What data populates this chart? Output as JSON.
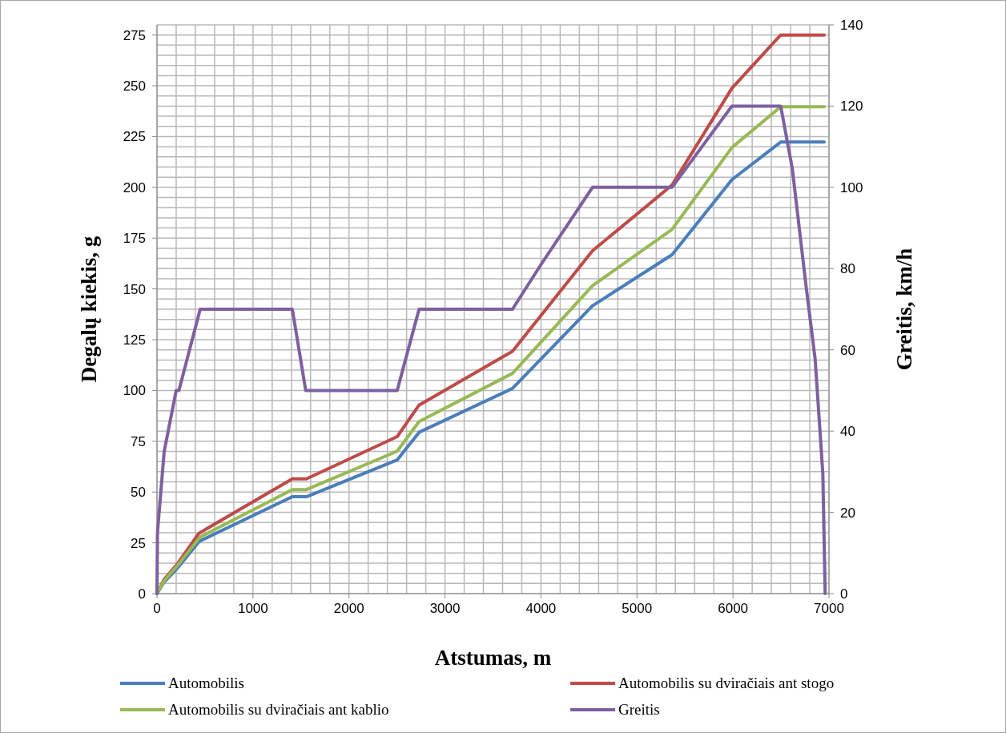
{
  "chart_data": {
    "type": "line",
    "xlabel": "Atstumas, m",
    "ylabel": "Degalų kiekis, g",
    "y2label": "Greitis, km/h",
    "xlim": [
      0,
      7000
    ],
    "xticks": [
      0,
      1000,
      2000,
      3000,
      4000,
      5000,
      6000,
      7000
    ],
    "ylim": [
      0,
      280
    ],
    "yticks": [
      0,
      25,
      50,
      75,
      100,
      125,
      150,
      175,
      200,
      225,
      250,
      275
    ],
    "y2lim": [
      0,
      140
    ],
    "y2ticks": [
      0,
      20,
      40,
      60,
      80,
      100,
      120,
      140
    ],
    "grid": true,
    "legend": "bottom",
    "marker": "none",
    "line_style": "solid",
    "series": [
      {
        "name": "Automobilis",
        "color": "#4a7ebb",
        "x": [
          0,
          75,
          214,
          442,
          1410,
          1557,
          2502,
          2730,
          3703,
          4537,
          5365,
          5989,
          6497,
          6950
        ],
        "values": [
          0,
          5.7,
          12.6,
          25.8,
          47.7,
          47.7,
          65.8,
          79.4,
          101,
          141.7,
          166.8,
          203.8,
          222.3,
          222.3
        ]
      },
      {
        "name": "Automobilis su dviračiais ant stogo",
        "color": "#be4b48",
        "x": [
          0,
          75,
          214,
          437,
          1410,
          1557,
          2502,
          2730,
          3703,
          4537,
          5365,
          5989,
          6497,
          6950
        ],
        "values": [
          0,
          7,
          14.7,
          29.7,
          56.5,
          56.5,
          77.3,
          92.8,
          119.3,
          168.8,
          201.1,
          248.8,
          275,
          275
        ]
      },
      {
        "name": "Automobilis su dviračiais ant kablio",
        "color": "#98b954",
        "x": [
          0,
          75,
          214,
          450,
          1410,
          1557,
          2502,
          2730,
          3703,
          4537,
          5365,
          5989,
          6497,
          6950
        ],
        "values": [
          0,
          6.3,
          13.9,
          27.9,
          51.2,
          51.2,
          70.1,
          84.7,
          108.4,
          151.6,
          179.3,
          219.6,
          239.7,
          239.7
        ]
      },
      {
        "name": "Greitis",
        "color": "#7d60a0",
        "axis": "y2",
        "x": [
          0,
          5,
          75,
          200,
          228,
          450,
          1410,
          1549,
          2502,
          2730,
          3703,
          4000,
          4537,
          5365,
          5989,
          6497,
          6618,
          6757,
          6856,
          6936,
          6960
        ],
        "values": [
          0,
          15,
          35,
          50,
          50,
          70,
          70,
          50,
          50,
          70,
          70,
          81,
          100,
          100,
          120,
          120,
          104.6,
          76.5,
          57.7,
          29.5,
          0
        ]
      }
    ]
  }
}
